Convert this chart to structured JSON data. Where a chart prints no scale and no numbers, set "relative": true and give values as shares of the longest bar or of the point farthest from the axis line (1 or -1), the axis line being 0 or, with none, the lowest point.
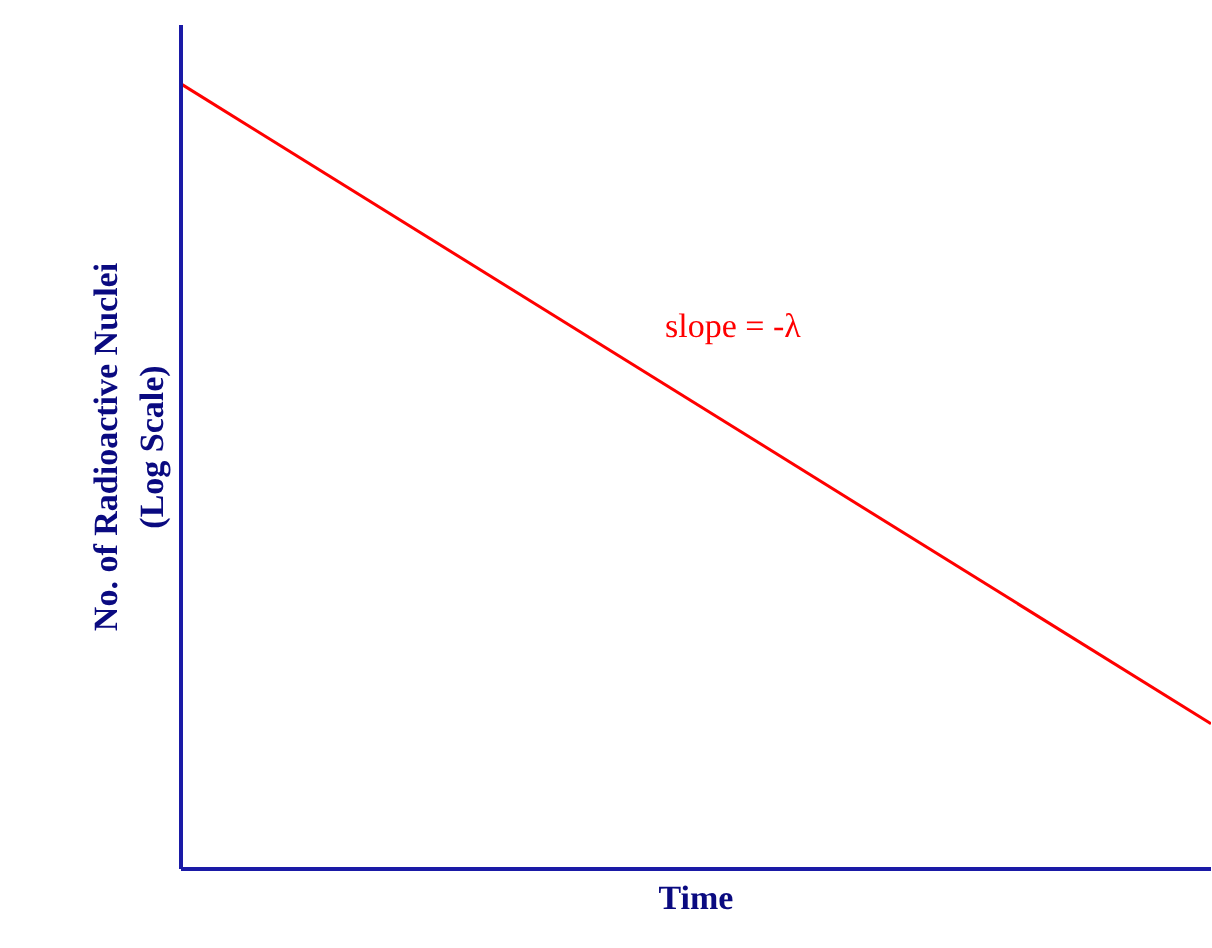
{
  "chart_data": {
    "type": "line",
    "relative": true,
    "xlabel": "Time",
    "ylabel": "No. of Radioactive Nuclei\n(Log Scale)",
    "categories": [
      null,
      null
    ],
    "series": [
      {
        "color": "#ff0000",
        "values": [
          1,
          0.185
        ]
      }
    ],
    "annotations": [
      "slope = -λ"
    ]
  }
}
